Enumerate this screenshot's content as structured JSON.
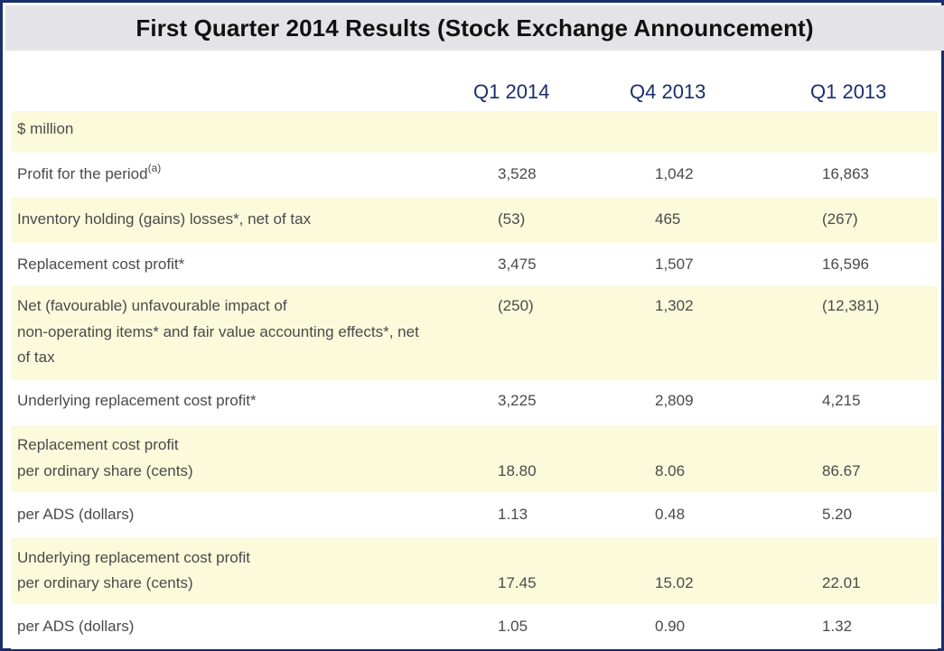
{
  "title": "First Quarter 2014 Results (Stock Exchange Announcement)",
  "columns": [
    "Q1 2014",
    "Q4 2013",
    "Q1 2013"
  ],
  "unit_label": "$ million",
  "rows": [
    {
      "label": "Profit for the period",
      "sup": "(a)",
      "values": [
        "3,528",
        "1,042",
        "16,863"
      ]
    },
    {
      "label": "Inventory holding (gains) losses*, net of tax",
      "values": [
        "(53)",
        "465",
        "(267)"
      ]
    },
    {
      "label": "Replacement cost profit*",
      "values": [
        "3,475",
        "1,507",
        "16,596"
      ]
    },
    {
      "label_lines": [
        "Net (favourable) unfavourable impact of",
        "non-operating items* and fair value accounting effects*, net",
        "of tax"
      ],
      "values": [
        "(250)",
        "1,302",
        "(12,381)"
      ]
    },
    {
      "label": "Underlying replacement cost profit*",
      "values": [
        "3,225",
        "2,809",
        "4,215"
      ]
    },
    {
      "label_lines": [
        "Replacement cost profit",
        "per ordinary share (cents)"
      ],
      "values": [
        "18.80",
        "8.06",
        "86.67"
      ]
    },
    {
      "label": "per ADS (dollars)",
      "values": [
        "1.13",
        "0.48",
        "5.20"
      ]
    },
    {
      "label_lines": [
        "Underlying replacement cost profit",
        "per ordinary share (cents)"
      ],
      "values": [
        "17.45",
        "15.02",
        "22.01"
      ]
    },
    {
      "label": "per ADS (dollars)",
      "values": [
        "1.05",
        "0.90",
        "1.32"
      ]
    }
  ]
}
